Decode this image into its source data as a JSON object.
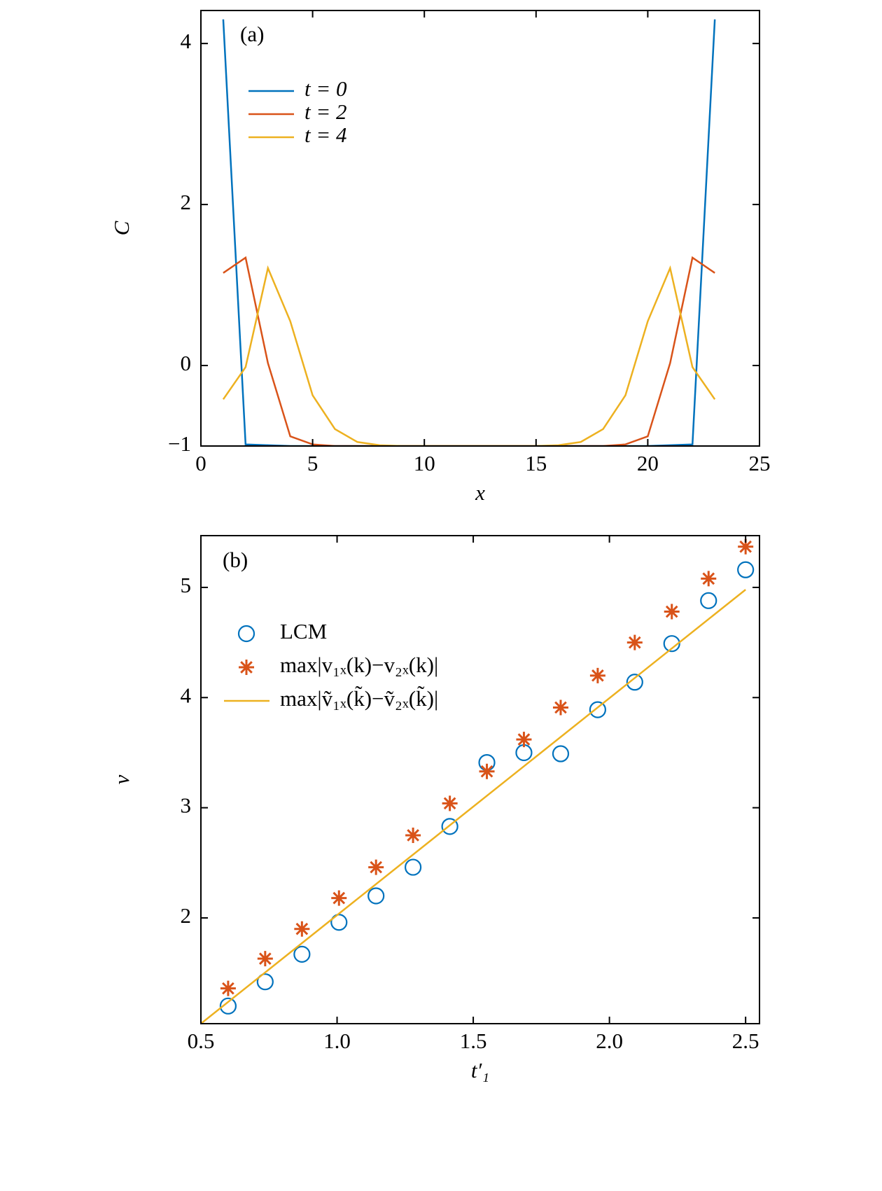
{
  "chart_data": [
    {
      "type": "line",
      "annotation": "(a)",
      "xlabel": "x",
      "ylabel": "C",
      "x": [
        1,
        2,
        3,
        4,
        5,
        6,
        7,
        8,
        9,
        10,
        11,
        12,
        13,
        14,
        15,
        16,
        17,
        18,
        19,
        20,
        21,
        22,
        23
      ],
      "series": [
        {
          "name": "t = 0",
          "color": "#0072bd",
          "values": [
            4.3,
            -0.98,
            -0.99,
            -1,
            -1,
            -1,
            -1,
            -1,
            -1,
            -1,
            -1,
            -1,
            -1,
            -1,
            -1,
            -1,
            -1,
            -1,
            -1,
            -1,
            -0.99,
            -0.98,
            4.3
          ]
        },
        {
          "name": "t = 2",
          "color": "#d95319",
          "values": [
            1.15,
            1.34,
            0.03,
            -0.88,
            -0.98,
            -1,
            -1,
            -1,
            -1,
            -1,
            -1,
            -1,
            -1,
            -1,
            -1,
            -1,
            -1,
            -1,
            -0.98,
            -0.88,
            0.03,
            1.34,
            1.15
          ]
        },
        {
          "name": "t = 4",
          "color": "#edb120",
          "values": [
            -0.42,
            -0.02,
            1.21,
            0.55,
            -0.37,
            -0.79,
            -0.95,
            -0.99,
            -1,
            -1,
            -1,
            -1,
            -1,
            -1,
            -1,
            -0.99,
            -0.95,
            -0.79,
            -0.37,
            0.55,
            1.21,
            -0.02,
            -0.42
          ]
        }
      ],
      "xlim": [
        0,
        25
      ],
      "xticks": [
        0,
        5,
        10,
        15,
        20,
        25
      ],
      "ylim": [
        -1,
        4.41
      ],
      "yticks": [
        {
          "value": -1,
          "label": "−1"
        },
        0,
        2,
        4
      ],
      "legend": "upper left"
    },
    {
      "type": "scatter",
      "annotation": "(b)",
      "xlabel": "t′₁",
      "ylabel": "v",
      "series": [
        {
          "name": "LCM",
          "color": "#0072bd",
          "marker": "circle",
          "x": [
            0.6,
            0.736,
            0.871,
            1.007,
            1.143,
            1.279,
            1.414,
            1.55,
            1.686,
            1.821,
            1.957,
            2.093,
            2.229,
            2.364,
            2.5
          ],
          "values": [
            1.2,
            1.42,
            1.67,
            1.96,
            2.2,
            2.46,
            2.83,
            3.41,
            3.5,
            3.49,
            3.89,
            4.14,
            4.49,
            4.88,
            5.16
          ]
        },
        {
          "name": "max|v₁ₓ(k)−v₂ₓ(k)|",
          "color": "#d95319",
          "marker": "star",
          "x": [
            0.6,
            0.736,
            0.871,
            1.007,
            1.143,
            1.279,
            1.414,
            1.55,
            1.686,
            1.821,
            1.957,
            2.093,
            2.229,
            2.364,
            2.5
          ],
          "values": [
            1.36,
            1.63,
            1.9,
            2.18,
            2.46,
            2.75,
            3.04,
            3.33,
            3.62,
            3.91,
            4.2,
            4.5,
            4.78,
            5.08,
            5.37
          ]
        },
        {
          "name": "max|ṽ₁ₓ(k̃)−ṽ₂ₓ(k̃)|",
          "color": "#edb120",
          "marker": "line",
          "x": [
            0.5,
            2.5
          ],
          "values": [
            1.04,
            4.98
          ]
        }
      ],
      "xlim": [
        0.5,
        2.551
      ],
      "xticks": [
        0.5,
        {
          "value": 1.0,
          "label": "1.0"
        },
        1.5,
        {
          "value": 2.0,
          "label": "2.0"
        },
        2.5
      ],
      "ylim": [
        1.04,
        5.47
      ],
      "yticks": [
        2,
        3,
        4,
        5
      ],
      "legend": "upper left"
    }
  ]
}
